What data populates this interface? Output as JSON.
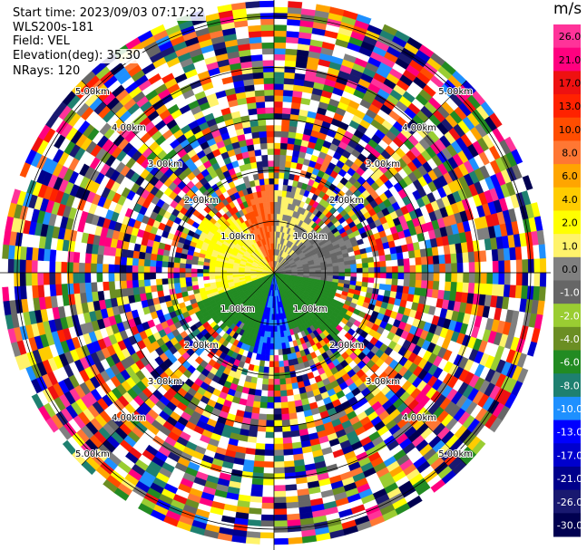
{
  "header": {
    "start_time": "Start time: 2023/09/03 07:17:22",
    "instrument": "WLS200s-181",
    "field": "Field: VEL",
    "elevation": "Elevation(deg): 35.30",
    "nrays": "NRays: 120"
  },
  "colorbar": {
    "unit": "m/s",
    "ticks": [
      "26.0",
      "21.0",
      "17.0",
      "13.0",
      "10.0",
      "8.0",
      "6.0",
      "4.0",
      "2.0",
      "1.0",
      "0.0",
      "-1.0",
      "-2.0",
      "-4.0",
      "-6.0",
      "-8.0",
      "-10.0",
      "-13.0",
      "-17.0",
      "-21.0",
      "-26.0",
      "-30.0"
    ],
    "colors": [
      "#ff3399",
      "#ff007f",
      "#ee1111",
      "#ff2200",
      "#ff4d00",
      "#ff7733",
      "#ffa500",
      "#ffcc00",
      "#ffff00",
      "#fff36b",
      "#808080",
      "#666666",
      "#9acd32",
      "#6b8e23",
      "#228b22",
      "#1e8070",
      "#1e90ff",
      "#0000ff",
      "#0000cd",
      "#00008b",
      "#191970",
      "#000050"
    ]
  },
  "chart_data": {
    "type": "heatmap",
    "projection": "polar PPI",
    "field": "VEL",
    "units": "m/s",
    "elevation_deg": 35.3,
    "nrays": 120,
    "range_rings_km": [
      1.0,
      2.0,
      3.0,
      4.0,
      5.0
    ],
    "range_ring_labels": [
      "1.00km",
      "2.00km",
      "3.00km",
      "4.00km",
      "5.00km"
    ],
    "color_range": [
      -30.0,
      26.0
    ],
    "valid_data_max_range_km": 1.5,
    "velocity_by_sector": [
      {
        "azimuth_range_deg": [
          270,
          0
        ],
        "velocity_ms": 2.0
      },
      {
        "azimuth_range_deg": [
          0,
          45
        ],
        "velocity_ms": 1.0
      },
      {
        "azimuth_range_deg": [
          330,
          360
        ],
        "velocity_ms": 10.0
      },
      {
        "azimuth_range_deg": [
          45,
          100
        ],
        "velocity_ms": 0.0
      },
      {
        "azimuth_range_deg": [
          100,
          250
        ],
        "velocity_ms": -5.0
      },
      {
        "azimuth_range_deg": [
          165,
          195
        ],
        "velocity_ms": -10.0
      },
      {
        "azimuth_range_deg": [
          250,
          270
        ],
        "velocity_ms": 2.0
      }
    ],
    "beyond_valid_range": "noise"
  }
}
